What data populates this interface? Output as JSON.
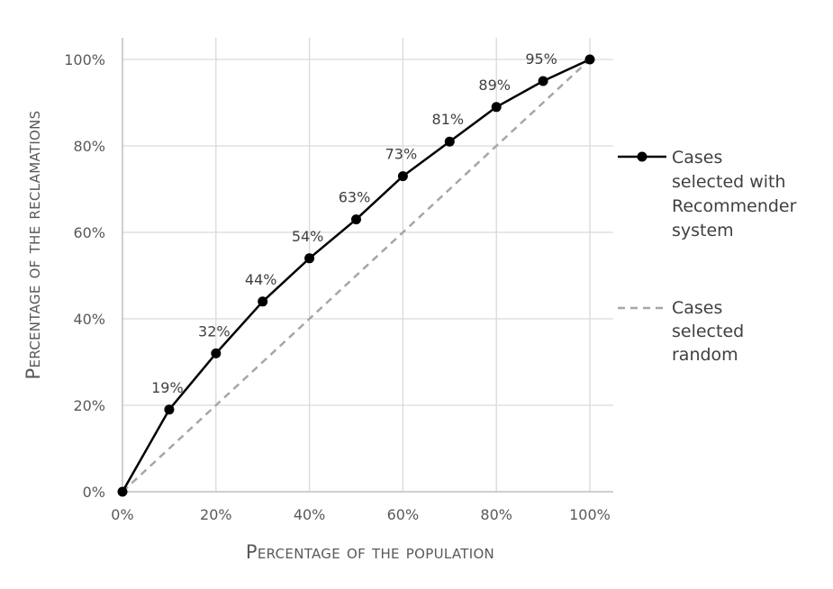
{
  "chart_data": {
    "type": "line",
    "xlabel": "Percentage of the population",
    "ylabel": "Percentage of the reclamations",
    "x": [
      0,
      10,
      20,
      30,
      40,
      50,
      60,
      70,
      80,
      90,
      100
    ],
    "x_tick_labels": [
      "0%",
      "20%",
      "40%",
      "60%",
      "80%",
      "100%"
    ],
    "y_tick_labels": [
      "0%",
      "20%",
      "40%",
      "60%",
      "80%",
      "100%"
    ],
    "xlim": [
      0,
      100
    ],
    "ylim": [
      0,
      100
    ],
    "grid": true,
    "legend_position": "right",
    "series": [
      {
        "name": "Cases selected with Recommender system",
        "values": [
          0,
          19,
          32,
          44,
          54,
          63,
          73,
          81,
          89,
          95,
          100
        ],
        "data_labels": [
          "",
          "19%",
          "32%",
          "44%",
          "54%",
          "63%",
          "73%",
          "81%",
          "89%",
          "95%",
          ""
        ],
        "color": "#000000",
        "style": "solid",
        "marker": "circle"
      },
      {
        "name": "Cases selected random",
        "values": [
          0,
          10,
          20,
          30,
          40,
          50,
          60,
          70,
          80,
          90,
          100
        ],
        "color": "#a6a6a6",
        "style": "dashed",
        "marker": "none"
      }
    ]
  },
  "legend": {
    "series1_lines": [
      "Cases",
      "selected with",
      "Recommender",
      "system"
    ],
    "series2_lines": [
      "Cases",
      "selected",
      "random"
    ]
  }
}
